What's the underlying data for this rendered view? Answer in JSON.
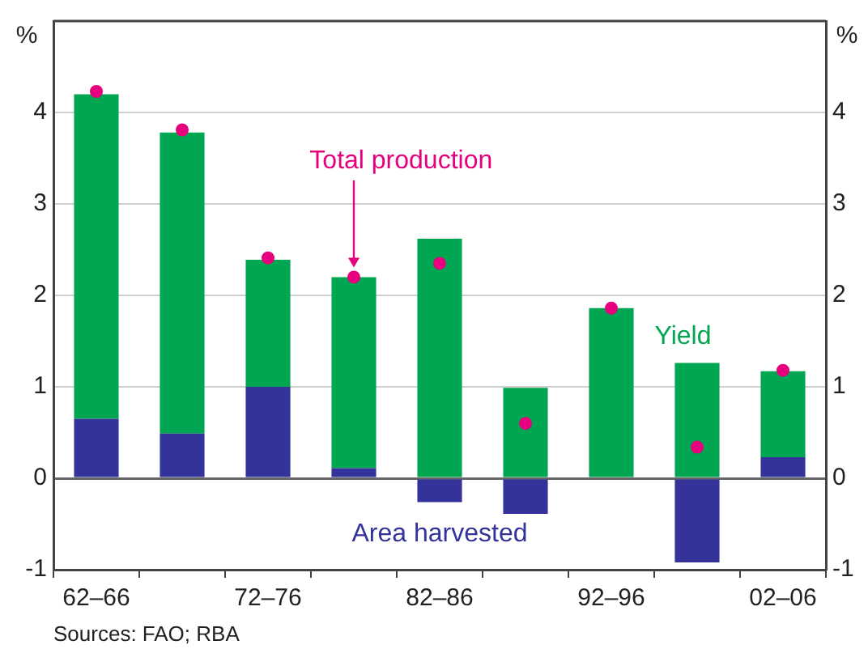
{
  "chart_data": {
    "type": "bar",
    "stacked": true,
    "categories": [
      "62–66",
      null,
      "72–76",
      null,
      "82–86",
      null,
      "92–96",
      null,
      "02–06"
    ],
    "series": [
      {
        "name": "Area harvested",
        "color": "#333399",
        "values": [
          0.65,
          0.49,
          1.0,
          0.11,
          -0.26,
          -0.39,
          0,
          -0.92,
          0.23
        ]
      },
      {
        "name": "Yield",
        "color": "#00a651",
        "values": [
          3.55,
          3.29,
          1.39,
          2.09,
          2.62,
          0.99,
          1.86,
          1.26,
          0.94
        ]
      },
      {
        "name": "Total production",
        "type": "scatter",
        "color": "#e6007e",
        "values": [
          4.23,
          3.81,
          2.41,
          2.2,
          2.35,
          0.6,
          1.86,
          0.34,
          1.18
        ]
      }
    ],
    "ylabel": "%",
    "y2label": "%",
    "ylim": [
      -1,
      5
    ],
    "yticks": [
      -1,
      0,
      1,
      2,
      3,
      4
    ],
    "y2lim": [
      -1,
      5
    ],
    "y2ticks": [
      -1,
      0,
      1,
      2,
      3,
      4
    ],
    "grid": "y",
    "legend": false,
    "marker": "circle",
    "annotations": [
      "Sources: FAO; RBA"
    ]
  }
}
